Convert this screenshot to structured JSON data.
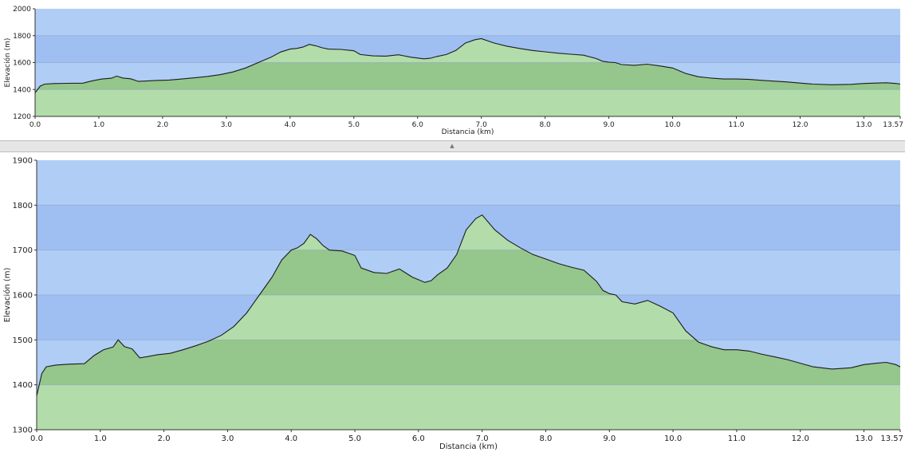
{
  "panels": [
    {
      "id": "overview",
      "ylabel": "Elevación (m)",
      "xlabel": "Distancia   (km)"
    },
    {
      "id": "detail",
      "ylabel": "Elevación (m)",
      "xlabel": "Distancia   (km)"
    }
  ],
  "colors": {
    "sky": "#9fbff2",
    "band_alt": "#b0cdf5",
    "fill": "#b2dcaa",
    "fill_band": "#95c68b",
    "line": "#1c1c1c",
    "grid": "#8ea5c8"
  },
  "chart_data": [
    {
      "type": "area",
      "xlabel": "Distancia   (km)",
      "ylabel": "Elevación (m)",
      "xlim": [
        0,
        13.57
      ],
      "ylim": [
        1200,
        2000
      ],
      "xticks": [
        "0.0",
        "1.0",
        "2.0",
        "3.0",
        "4.0",
        "5.0",
        "6.0",
        "7.0",
        "8.0",
        "9.0",
        "10.0",
        "11.0",
        "12.0",
        "13.0",
        "13.57"
      ],
      "yticks": [
        "1200",
        "1400",
        "1600",
        "1800",
        "2000"
      ],
      "grid": true,
      "series": [
        {
          "x": [
            0,
            0.08,
            0.15,
            0.3,
            0.5,
            0.75,
            0.9,
            1.05,
            1.2,
            1.28,
            1.38,
            1.5,
            1.62,
            1.75,
            1.9,
            2.1,
            2.3,
            2.5,
            2.7,
            2.9,
            3.1,
            3.3,
            3.5,
            3.7,
            3.85,
            4.0,
            4.1,
            4.2,
            4.3,
            4.4,
            4.5,
            4.6,
            4.8,
            5.0,
            5.1,
            5.3,
            5.5,
            5.7,
            5.9,
            6.1,
            6.2,
            6.3,
            6.45,
            6.6,
            6.75,
            6.9,
            7.0,
            7.2,
            7.4,
            7.6,
            7.8,
            8.0,
            8.2,
            8.4,
            8.6,
            8.8,
            8.9,
            9.0,
            9.1,
            9.2,
            9.4,
            9.6,
            9.8,
            10.0,
            10.2,
            10.4,
            10.6,
            10.8,
            11.0,
            11.2,
            11.4,
            11.6,
            11.8,
            12.0,
            12.2,
            12.5,
            12.8,
            13.0,
            13.2,
            13.35,
            13.5,
            13.57
          ],
          "y": [
            1375,
            1425,
            1440,
            1444,
            1446,
            1447,
            1465,
            1478,
            1484,
            1500,
            1485,
            1480,
            1460,
            1463,
            1467,
            1470,
            1478,
            1487,
            1497,
            1510,
            1530,
            1560,
            1600,
            1640,
            1678,
            1700,
            1705,
            1715,
            1735,
            1725,
            1710,
            1700,
            1698,
            1688,
            1660,
            1650,
            1648,
            1658,
            1640,
            1628,
            1632,
            1645,
            1660,
            1690,
            1745,
            1770,
            1778,
            1745,
            1722,
            1705,
            1690,
            1680,
            1670,
            1662,
            1655,
            1630,
            1610,
            1603,
            1600,
            1585,
            1580,
            1588,
            1575,
            1560,
            1520,
            1495,
            1485,
            1478,
            1478,
            1475,
            1468,
            1462,
            1456,
            1448,
            1440,
            1435,
            1438,
            1445,
            1448,
            1450,
            1445,
            1440
          ]
        }
      ]
    },
    {
      "type": "area",
      "xlabel": "Distancia   (km)",
      "ylabel": "Elevación (m)",
      "xlim": [
        0,
        13.57
      ],
      "ylim": [
        1300,
        1900
      ],
      "xticks": [
        "0.0",
        "1.0",
        "2.0",
        "3.0",
        "4.0",
        "5.0",
        "6.0",
        "7.0",
        "8.0",
        "9.0",
        "10.0",
        "11.0",
        "12.0",
        "13.0",
        "13.57"
      ],
      "yticks": [
        "1300",
        "1400",
        "1500",
        "1600",
        "1700",
        "1800",
        "1900"
      ],
      "grid": true,
      "series": [
        {
          "x": [
            0,
            0.08,
            0.15,
            0.3,
            0.5,
            0.75,
            0.9,
            1.05,
            1.2,
            1.28,
            1.38,
            1.5,
            1.62,
            1.75,
            1.9,
            2.1,
            2.3,
            2.5,
            2.7,
            2.9,
            3.1,
            3.3,
            3.5,
            3.7,
            3.85,
            4.0,
            4.1,
            4.2,
            4.3,
            4.4,
            4.5,
            4.6,
            4.8,
            5.0,
            5.1,
            5.3,
            5.5,
            5.7,
            5.9,
            6.1,
            6.2,
            6.3,
            6.45,
            6.6,
            6.75,
            6.9,
            7.0,
            7.2,
            7.4,
            7.6,
            7.8,
            8.0,
            8.2,
            8.4,
            8.6,
            8.8,
            8.9,
            9.0,
            9.1,
            9.2,
            9.4,
            9.6,
            9.8,
            10.0,
            10.2,
            10.4,
            10.6,
            10.8,
            11.0,
            11.2,
            11.4,
            11.6,
            11.8,
            12.0,
            12.2,
            12.5,
            12.8,
            13.0,
            13.2,
            13.35,
            13.5,
            13.57
          ],
          "y": [
            1375,
            1425,
            1440,
            1444,
            1446,
            1447,
            1465,
            1478,
            1484,
            1500,
            1485,
            1480,
            1460,
            1463,
            1467,
            1470,
            1478,
            1487,
            1497,
            1510,
            1530,
            1560,
            1600,
            1640,
            1678,
            1700,
            1705,
            1715,
            1735,
            1725,
            1710,
            1700,
            1698,
            1688,
            1660,
            1650,
            1648,
            1658,
            1640,
            1628,
            1632,
            1645,
            1660,
            1690,
            1745,
            1770,
            1778,
            1745,
            1722,
            1705,
            1690,
            1680,
            1670,
            1662,
            1655,
            1630,
            1610,
            1603,
            1600,
            1585,
            1580,
            1588,
            1575,
            1560,
            1520,
            1495,
            1485,
            1478,
            1478,
            1475,
            1468,
            1462,
            1456,
            1448,
            1440,
            1435,
            1438,
            1445,
            1448,
            1450,
            1445,
            1440
          ]
        }
      ]
    }
  ]
}
